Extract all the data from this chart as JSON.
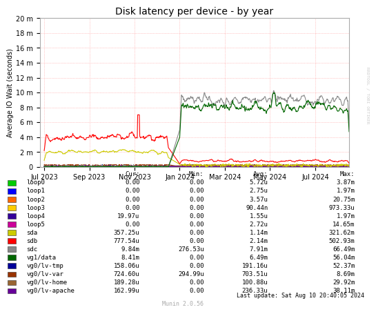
{
  "title": "Disk latency per device - by year",
  "ylabel": "Average IO Wait (seconds)",
  "background_color": "#FFFFFF",
  "legend_entries": [
    {
      "label": "loop0",
      "color": "#00CC00",
      "cur": "0.00",
      "min": "0.00",
      "avg": "5.72u",
      "max": "3.87m"
    },
    {
      "label": "loop1",
      "color": "#0000FF",
      "cur": "0.00",
      "min": "0.00",
      "avg": "2.75u",
      "max": "1.97m"
    },
    {
      "label": "loop2",
      "color": "#FF6600",
      "cur": "0.00",
      "min": "0.00",
      "avg": "3.57u",
      "max": "20.75m"
    },
    {
      "label": "loop3",
      "color": "#FFCC00",
      "cur": "0.00",
      "min": "0.00",
      "avg": "90.44n",
      "max": "973.33u"
    },
    {
      "label": "loop4",
      "color": "#330099",
      "cur": "19.97u",
      "min": "0.00",
      "avg": "1.55u",
      "max": "1.97m"
    },
    {
      "label": "loop5",
      "color": "#CC0099",
      "cur": "0.00",
      "min": "0.00",
      "avg": "2.72u",
      "max": "14.65m"
    },
    {
      "label": "sda",
      "color": "#CCCC00",
      "cur": "357.25u",
      "min": "0.00",
      "avg": "1.14m",
      "max": "321.62m"
    },
    {
      "label": "sdb",
      "color": "#FF0000",
      "cur": "777.54u",
      "min": "0.00",
      "avg": "2.14m",
      "max": "502.93m"
    },
    {
      "label": "sdc",
      "color": "#888888",
      "cur": "9.84m",
      "min": "276.53u",
      "avg": "7.91m",
      "max": "66.49m"
    },
    {
      "label": "vg1/data",
      "color": "#006600",
      "cur": "8.41m",
      "min": "0.00",
      "avg": "6.49m",
      "max": "56.04m"
    },
    {
      "label": "vg0/lv-tmp",
      "color": "#000099",
      "cur": "158.06u",
      "min": "0.00",
      "avg": "191.16u",
      "max": "52.37m"
    },
    {
      "label": "vg0/lv-var",
      "color": "#993300",
      "cur": "724.60u",
      "min": "294.99u",
      "avg": "703.51u",
      "max": "8.69m"
    },
    {
      "label": "vg0/lv-home",
      "color": "#996633",
      "cur": "189.28u",
      "min": "0.00",
      "avg": "100.88u",
      "max": "29.92m"
    },
    {
      "label": "vg0/lv-apache",
      "color": "#660099",
      "cur": "162.99u",
      "min": "0.00",
      "avg": "236.33u",
      "max": "38.11m"
    }
  ],
  "yticks_labels": [
    "0",
    "2 m",
    "4 m",
    "6 m",
    "8 m",
    "10 m",
    "12 m",
    "14 m",
    "16 m",
    "18 m",
    "20 m"
  ],
  "yticks_values": [
    0,
    0.002,
    0.004,
    0.006,
    0.008,
    0.01,
    0.012,
    0.014,
    0.016,
    0.018,
    0.02
  ],
  "ylim": [
    0,
    0.02
  ],
  "xticks_labels": [
    "Jul 2023",
    "Sep 2023",
    "Nov 2023",
    "Jan 2024",
    "Mar 2024",
    "May 2024",
    "Jul 2024"
  ],
  "xticks_values": [
    0,
    2,
    4,
    6,
    8,
    10,
    12
  ],
  "xmin": -0.2,
  "xmax": 13.5,
  "last_update": "Last update: Sat Aug 10 20:40:05 2024",
  "munin_version": "Munin 2.0.56",
  "rrdtool_text": "RRDTOOL / TOBI OETIKER"
}
